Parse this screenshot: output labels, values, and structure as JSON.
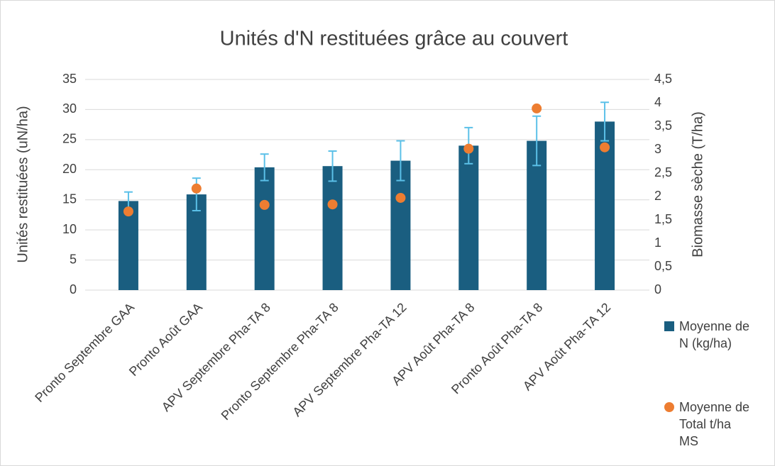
{
  "chart_data": {
    "type": "bar",
    "title": "Unités d'N restituées grâce au couvert",
    "y_label": "Unités restituées (uN/ha)",
    "y2_label": "Biomasse sèche (T/ha)",
    "categories": [
      "Pronto Septembre GAA",
      "Pronto  Août GAA",
      "APV Septembre Pha-TA 8",
      "Pronto Septembre Pha-TA 8",
      "APV Septembre Pha-TA 12",
      "APV Août Pha-TA 8",
      "Pronto  Août Pha-TA 8",
      "APV Août Pha-TA 12"
    ],
    "series": [
      {
        "name": "Moyenne de N (kg/ha)",
        "type": "bar",
        "color": "#1a5e80",
        "error_color": "#5bc0e8",
        "values": [
          14.8,
          15.9,
          20.4,
          20.6,
          21.5,
          24.0,
          24.8,
          28.0
        ],
        "errors": [
          1.5,
          2.7,
          2.2,
          2.5,
          3.3,
          3.0,
          4.1,
          3.2
        ]
      },
      {
        "name": "Moyenne de Total t/ha MS",
        "type": "scatter",
        "axis": "y2",
        "color": "#ed7d31",
        "values": [
          1.68,
          2.17,
          1.82,
          1.83,
          1.97,
          3.02,
          3.88,
          3.05
        ]
      }
    ],
    "ylim": [
      0,
      35
    ],
    "yticks": [
      0,
      5,
      10,
      15,
      20,
      25,
      30,
      35
    ],
    "y2lim": [
      0,
      4.5
    ],
    "y2ticks": [
      0,
      {
        "value": 0.5,
        "label": "0,5"
      },
      1,
      {
        "value": 1.5,
        "label": "1,5"
      },
      2,
      {
        "value": 2.5,
        "label": "2,5"
      },
      3,
      {
        "value": 3.5,
        "label": "3,5"
      },
      4,
      {
        "value": 4.5,
        "label": "4,5"
      }
    ],
    "grid": true,
    "legend": "right"
  }
}
